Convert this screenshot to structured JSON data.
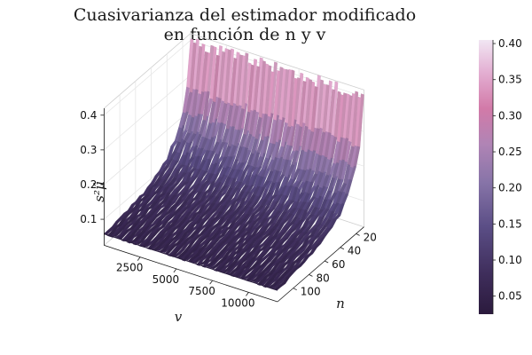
{
  "chart_data": {
    "type": "surface",
    "title": {
      "line1": "Cuasivarianza del estimador modificado",
      "line2": "en función de n y v"
    },
    "xlabel": "v",
    "ylabel": "n",
    "zlabel": "s²μ̂",
    "x_ticks": [
      2500,
      5000,
      7500,
      10000
    ],
    "x_tick_labels": [
      "2500",
      "5000",
      "7500",
      "10000"
    ],
    "xlim": [
      0,
      12000
    ],
    "y_ticks": [
      20,
      40,
      60,
      80,
      100
    ],
    "y_tick_labels": [
      "20",
      "40",
      "60",
      "80",
      "100"
    ],
    "ylim": [
      10,
      120
    ],
    "z_ticks": [
      0.1,
      0.2,
      0.3,
      0.4
    ],
    "z_tick_labels": [
      "0.1",
      "0.2",
      "0.3",
      "0.4"
    ],
    "zlim": [
      0.025,
      0.42
    ],
    "surface_model": "z ≈ 0.03 + 0.37 · (10/n) + noise",
    "n_values": [
      10,
      15,
      20,
      25,
      30,
      40,
      50,
      60,
      70,
      80,
      90,
      100,
      110,
      120
    ],
    "z_by_n": [
      0.4,
      0.27,
      0.215,
      0.18,
      0.155,
      0.12,
      0.1,
      0.09,
      0.08,
      0.075,
      0.07,
      0.065,
      0.06,
      0.058
    ],
    "colorbar": {
      "ticks": [
        0.05,
        0.1,
        0.15,
        0.2,
        0.25,
        0.3,
        0.35,
        0.4
      ],
      "tick_labels": [
        "0.05",
        "0.10",
        "0.15",
        "0.20",
        "0.25",
        "0.30",
        "0.35",
        "0.40"
      ],
      "range": [
        0.025,
        0.405
      ],
      "colormap": [
        "#2b1a3d",
        "#3f2e5c",
        "#5b4e86",
        "#8774a8",
        "#b084b5",
        "#d27aa8",
        "#e3aed2",
        "#f1e6f3"
      ]
    },
    "grid": true,
    "legend": "none"
  }
}
